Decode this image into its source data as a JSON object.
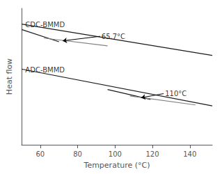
{
  "chart_data": {
    "type": "line",
    "xlabel": "Temperature (°C)",
    "ylabel": "Heat flow",
    "xlim": [
      50,
      152
    ],
    "ylim": [
      0,
      10
    ],
    "xticks": [
      60,
      80,
      100,
      120,
      140
    ],
    "yticks": [],
    "tick_labels": "x",
    "grid": false,
    "series": [
      {
        "color": "#1a1a1a",
        "x": [
          50,
          152
        ],
        "values": [
          8.85,
          6.55
        ]
      },
      {
        "color": "#1a1a1a",
        "x": [
          50,
          70
        ],
        "values": [
          8.45,
          7.55
        ]
      },
      {
        "color": "#808080",
        "x": [
          62,
          96
        ],
        "values": [
          7.82,
          7.25
        ]
      },
      {
        "color": "#1a1a1a",
        "x": [
          50,
          152
        ],
        "values": [
          5.55,
          2.85
        ]
      },
      {
        "color": "#1a1a1a",
        "x": [
          96,
          119
        ],
        "values": [
          4.05,
          3.32
        ]
      },
      {
        "color": "#808080",
        "x": [
          108,
          143
        ],
        "values": [
          3.58,
          2.92
        ]
      }
    ],
    "annotations": [
      {
        "text": "65.7°C",
        "x": 72,
        "y": 7.62,
        "text_x": 92,
        "text_y": 7.95
      },
      {
        "text": "110°C",
        "x": 114,
        "y": 3.45,
        "text_x": 126,
        "text_y": 3.75
      }
    ],
    "labels": [
      {
        "text": "CDC-BMMD",
        "x": 52,
        "y": 8.55
      },
      {
        "text": "ADC-BMMD",
        "x": 52,
        "y": 5.25
      }
    ]
  }
}
